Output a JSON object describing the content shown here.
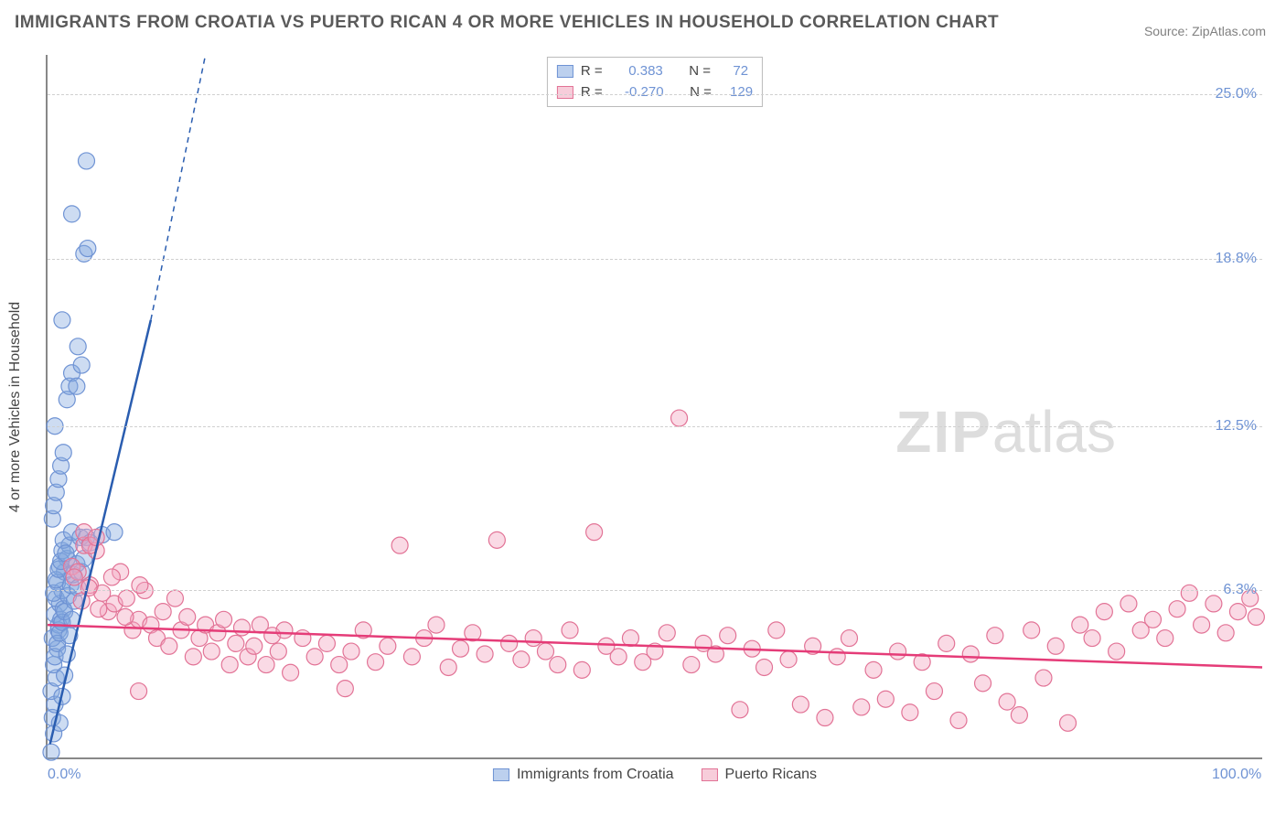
{
  "title": "IMMIGRANTS FROM CROATIA VS PUERTO RICAN 4 OR MORE VEHICLES IN HOUSEHOLD CORRELATION CHART",
  "source": "Source: ZipAtlas.com",
  "ylabel": "4 or more Vehicles in Household",
  "watermark_a": "ZIP",
  "watermark_b": "atlas",
  "chart": {
    "type": "scatter",
    "background_color": "#ffffff",
    "grid_color": "#d0d0d0",
    "axis_color": "#888888",
    "label_color": "#6f93d4",
    "text_color": "#444444",
    "title_fontsize": 19,
    "label_fontsize": 16,
    "marker_radius": 9,
    "marker_opacity": 0.45,
    "xlim": [
      0,
      100
    ],
    "ylim": [
      0,
      26.5
    ],
    "xticks": [
      {
        "v": 0,
        "label": "0.0%"
      },
      {
        "v": 100,
        "label": "100.0%"
      }
    ],
    "yticks": [
      {
        "v": 6.3,
        "label": "6.3%"
      },
      {
        "v": 12.5,
        "label": "12.5%"
      },
      {
        "v": 18.8,
        "label": "18.8%"
      },
      {
        "v": 25.0,
        "label": "25.0%"
      }
    ],
    "series": [
      {
        "name": "Immigrants from Croatia",
        "color_fill": "rgba(131,167,222,0.40)",
        "color_stroke": "#6f93d4",
        "swatch_fill": "#bcd0ee",
        "swatch_border": "#6f93d4",
        "R": "0.383",
        "N": "72",
        "trend": {
          "x1": 0.2,
          "y1": 0.5,
          "x2": 8.5,
          "y2": 16.5,
          "dash_ext_x": 13.0,
          "dash_ext_y": 26.5,
          "color": "#2a5db0",
          "width": 2.5
        },
        "points": [
          [
            0.3,
            0.2
          ],
          [
            0.5,
            0.9
          ],
          [
            0.4,
            1.5
          ],
          [
            0.6,
            2.0
          ],
          [
            0.3,
            2.5
          ],
          [
            0.7,
            3.0
          ],
          [
            0.5,
            3.5
          ],
          [
            0.8,
            4.1
          ],
          [
            0.4,
            4.5
          ],
          [
            0.9,
            5.0
          ],
          [
            0.6,
            5.4
          ],
          [
            1.0,
            5.8
          ],
          [
            0.7,
            6.0
          ],
          [
            1.2,
            6.3
          ],
          [
            0.8,
            6.6
          ],
          [
            1.4,
            7.0
          ],
          [
            1.0,
            7.2
          ],
          [
            1.6,
            7.5
          ],
          [
            1.2,
            7.8
          ],
          [
            1.8,
            8.0
          ],
          [
            1.3,
            8.2
          ],
          [
            2.0,
            8.5
          ],
          [
            0.9,
            4.8
          ],
          [
            1.1,
            5.2
          ],
          [
            1.3,
            5.6
          ],
          [
            0.5,
            6.2
          ],
          [
            0.7,
            6.7
          ],
          [
            0.9,
            7.1
          ],
          [
            1.1,
            7.4
          ],
          [
            1.5,
            7.7
          ],
          [
            0.6,
            3.8
          ],
          [
            0.8,
            4.3
          ],
          [
            1.0,
            4.7
          ],
          [
            1.2,
            5.1
          ],
          [
            1.4,
            5.5
          ],
          [
            1.7,
            6.1
          ],
          [
            1.9,
            6.5
          ],
          [
            2.1,
            6.9
          ],
          [
            2.4,
            7.3
          ],
          [
            2.7,
            8.3
          ],
          [
            3.2,
            8.3
          ],
          [
            0.4,
            9.0
          ],
          [
            0.5,
            9.5
          ],
          [
            0.7,
            10.0
          ],
          [
            0.9,
            10.5
          ],
          [
            1.1,
            11.0
          ],
          [
            1.3,
            11.5
          ],
          [
            0.6,
            12.5
          ],
          [
            1.6,
            13.5
          ],
          [
            1.8,
            14.0
          ],
          [
            2.0,
            14.5
          ],
          [
            2.4,
            14.0
          ],
          [
            2.8,
            14.8
          ],
          [
            1.2,
            16.5
          ],
          [
            2.5,
            15.5
          ],
          [
            3.0,
            19.0
          ],
          [
            3.3,
            19.2
          ],
          [
            2.0,
            20.5
          ],
          [
            3.2,
            22.5
          ],
          [
            1.0,
            1.3
          ],
          [
            1.2,
            2.3
          ],
          [
            1.4,
            3.1
          ],
          [
            1.6,
            3.9
          ],
          [
            1.8,
            4.6
          ],
          [
            2.0,
            5.2
          ],
          [
            2.2,
            5.9
          ],
          [
            2.5,
            6.4
          ],
          [
            2.8,
            7.0
          ],
          [
            3.0,
            7.5
          ],
          [
            3.5,
            8.1
          ],
          [
            4.5,
            8.4
          ],
          [
            5.5,
            8.5
          ]
        ]
      },
      {
        "name": "Puerto Ricans",
        "color_fill": "rgba(243,163,190,0.40)",
        "color_stroke": "#e27396",
        "swatch_fill": "#f7cdda",
        "swatch_border": "#e27396",
        "R": "-0.270",
        "N": "129",
        "trend": {
          "x1": 0,
          "y1": 5.0,
          "x2": 100,
          "y2": 3.4,
          "color": "#e53c78",
          "width": 2.5
        },
        "points": [
          [
            2.0,
            7.2
          ],
          [
            2.5,
            7.0
          ],
          [
            3.0,
            8.0
          ],
          [
            3.5,
            6.5
          ],
          [
            4.0,
            7.8
          ],
          [
            4.5,
            6.2
          ],
          [
            5.0,
            5.5
          ],
          [
            5.5,
            5.8
          ],
          [
            6.0,
            7.0
          ],
          [
            6.5,
            6.0
          ],
          [
            7.0,
            4.8
          ],
          [
            7.5,
            5.2
          ],
          [
            8.0,
            6.3
          ],
          [
            8.5,
            5.0
          ],
          [
            9.0,
            4.5
          ],
          [
            9.5,
            5.5
          ],
          [
            10.0,
            4.2
          ],
          [
            10.5,
            6.0
          ],
          [
            11.0,
            4.8
          ],
          [
            11.5,
            5.3
          ],
          [
            12.0,
            3.8
          ],
          [
            12.5,
            4.5
          ],
          [
            13.0,
            5.0
          ],
          [
            13.5,
            4.0
          ],
          [
            14.0,
            4.7
          ],
          [
            14.5,
            5.2
          ],
          [
            15.0,
            3.5
          ],
          [
            15.5,
            4.3
          ],
          [
            16.0,
            4.9
          ],
          [
            16.5,
            3.8
          ],
          [
            17.0,
            4.2
          ],
          [
            17.5,
            5.0
          ],
          [
            18.0,
            3.5
          ],
          [
            18.5,
            4.6
          ],
          [
            19.0,
            4.0
          ],
          [
            19.5,
            4.8
          ],
          [
            20.0,
            3.2
          ],
          [
            21.0,
            4.5
          ],
          [
            22.0,
            3.8
          ],
          [
            23.0,
            4.3
          ],
          [
            24.0,
            3.5
          ],
          [
            25.0,
            4.0
          ],
          [
            26.0,
            4.8
          ],
          [
            27.0,
            3.6
          ],
          [
            28.0,
            4.2
          ],
          [
            29.0,
            8.0
          ],
          [
            30.0,
            3.8
          ],
          [
            31.0,
            4.5
          ],
          [
            32.0,
            5.0
          ],
          [
            33.0,
            3.4
          ],
          [
            34.0,
            4.1
          ],
          [
            35.0,
            4.7
          ],
          [
            36.0,
            3.9
          ],
          [
            37.0,
            8.2
          ],
          [
            38.0,
            4.3
          ],
          [
            39.0,
            3.7
          ],
          [
            40.0,
            4.5
          ],
          [
            41.0,
            4.0
          ],
          [
            42.0,
            3.5
          ],
          [
            43.0,
            4.8
          ],
          [
            44.0,
            3.3
          ],
          [
            45.0,
            8.5
          ],
          [
            46.0,
            4.2
          ],
          [
            47.0,
            3.8
          ],
          [
            48.0,
            4.5
          ],
          [
            49.0,
            3.6
          ],
          [
            50.0,
            4.0
          ],
          [
            51.0,
            4.7
          ],
          [
            52.0,
            12.8
          ],
          [
            53.0,
            3.5
          ],
          [
            54.0,
            4.3
          ],
          [
            55.0,
            3.9
          ],
          [
            56.0,
            4.6
          ],
          [
            57.0,
            1.8
          ],
          [
            58.0,
            4.1
          ],
          [
            59.0,
            3.4
          ],
          [
            60.0,
            4.8
          ],
          [
            61.0,
            3.7
          ],
          [
            62.0,
            2.0
          ],
          [
            63.0,
            4.2
          ],
          [
            64.0,
            1.5
          ],
          [
            65.0,
            3.8
          ],
          [
            66.0,
            4.5
          ],
          [
            67.0,
            1.9
          ],
          [
            68.0,
            3.3
          ],
          [
            69.0,
            2.2
          ],
          [
            70.0,
            4.0
          ],
          [
            71.0,
            1.7
          ],
          [
            72.0,
            3.6
          ],
          [
            73.0,
            2.5
          ],
          [
            74.0,
            4.3
          ],
          [
            75.0,
            1.4
          ],
          [
            76.0,
            3.9
          ],
          [
            77.0,
            2.8
          ],
          [
            78.0,
            4.6
          ],
          [
            79.0,
            2.1
          ],
          [
            80.0,
            1.6
          ],
          [
            81.0,
            4.8
          ],
          [
            82.0,
            3.0
          ],
          [
            83.0,
            4.2
          ],
          [
            84.0,
            1.3
          ],
          [
            85.0,
            5.0
          ],
          [
            86.0,
            4.5
          ],
          [
            87.0,
            5.5
          ],
          [
            88.0,
            4.0
          ],
          [
            89.0,
            5.8
          ],
          [
            90.0,
            4.8
          ],
          [
            91.0,
            5.2
          ],
          [
            92.0,
            4.5
          ],
          [
            93.0,
            5.6
          ],
          [
            94.0,
            6.2
          ],
          [
            95.0,
            5.0
          ],
          [
            96.0,
            5.8
          ],
          [
            97.0,
            4.7
          ],
          [
            98.0,
            5.5
          ],
          [
            99.0,
            6.0
          ],
          [
            99.5,
            5.3
          ],
          [
            7.5,
            2.5
          ],
          [
            24.5,
            2.6
          ],
          [
            3.0,
            8.5
          ],
          [
            3.5,
            8.0
          ],
          [
            4.0,
            8.3
          ],
          [
            2.2,
            6.8
          ],
          [
            2.8,
            5.9
          ],
          [
            3.4,
            6.4
          ],
          [
            4.2,
            5.6
          ],
          [
            5.3,
            6.8
          ],
          [
            6.4,
            5.3
          ],
          [
            7.6,
            6.5
          ]
        ]
      }
    ]
  },
  "legend_top_labels": {
    "R": "R =",
    "N": "N ="
  },
  "legend_bottom": [
    {
      "label": "Immigrants from Croatia",
      "fill": "#bcd0ee",
      "border": "#6f93d4"
    },
    {
      "label": "Puerto Ricans",
      "fill": "#f7cdda",
      "border": "#e27396"
    }
  ]
}
